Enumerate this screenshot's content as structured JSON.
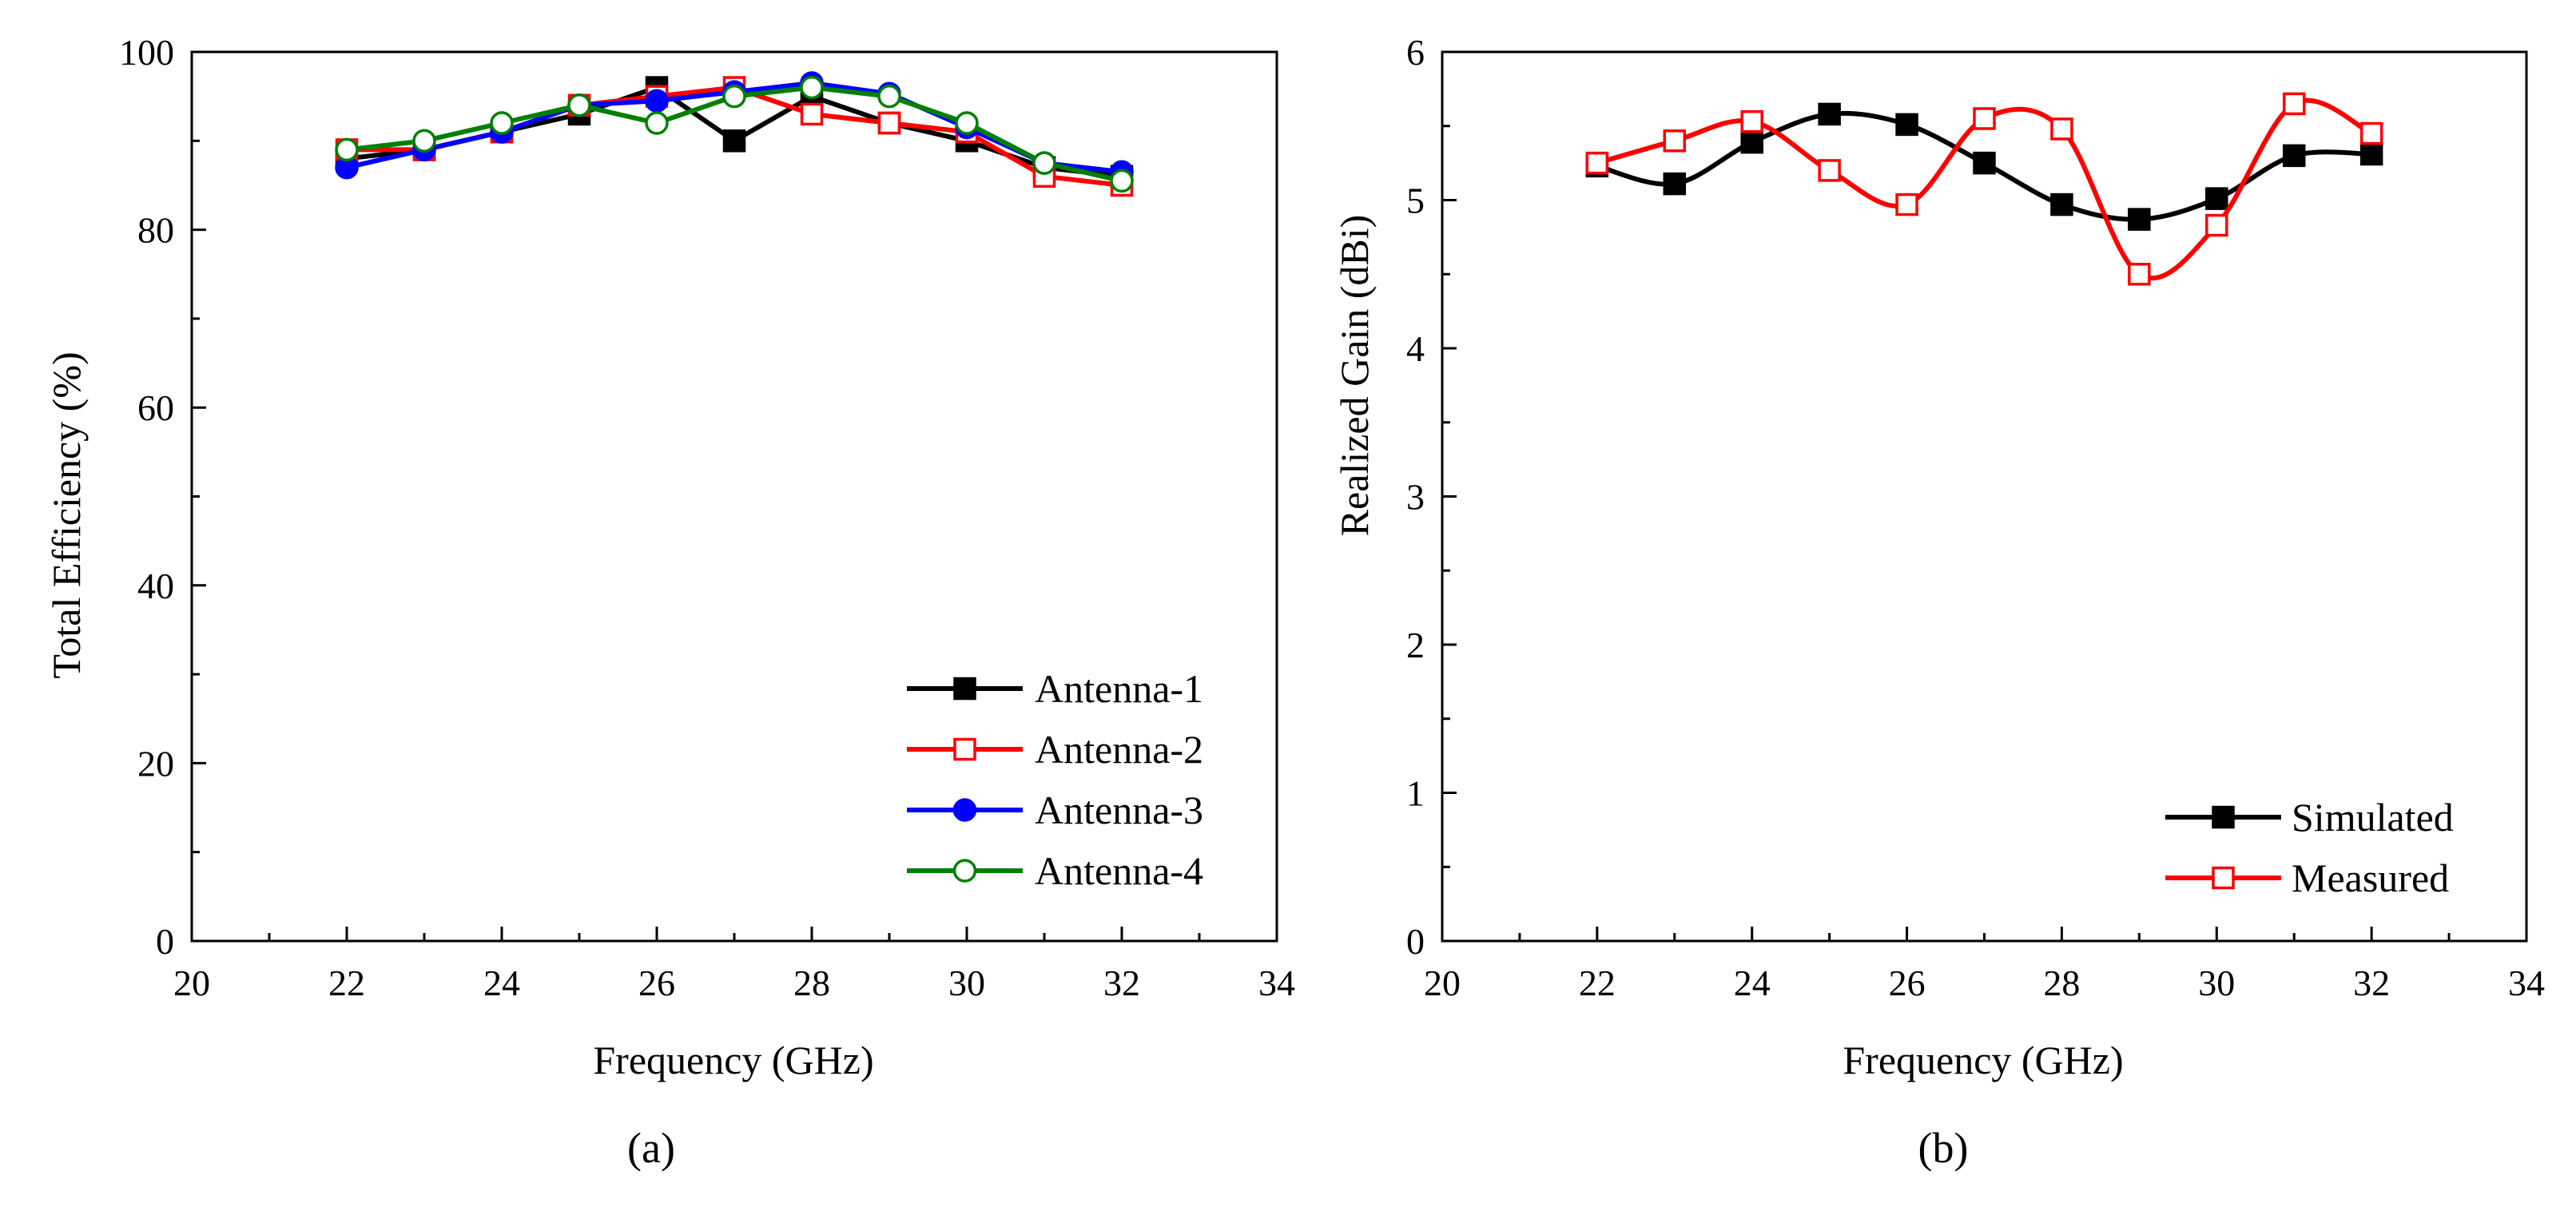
{
  "chart_data": [
    {
      "type": "line",
      "panel_label": "(a)",
      "xlabel": "Frequency (GHz)",
      "ylabel": "Total Efficiency (%)",
      "xlim": [
        20,
        34
      ],
      "ylim": [
        0,
        100
      ],
      "x_ticks": [
        20,
        22,
        24,
        26,
        28,
        30,
        32,
        34
      ],
      "y_ticks": [
        0,
        20,
        40,
        60,
        80,
        100
      ],
      "legend_position": "bottom-right",
      "grid": false,
      "x": [
        22,
        23,
        24,
        25,
        26,
        27,
        28,
        29,
        30,
        31,
        32
      ],
      "series": [
        {
          "name": "Antenna-1",
          "color": "#000000",
          "marker": "square-filled",
          "values": [
            88,
            89,
            91,
            93,
            96,
            90,
            95,
            92,
            90,
            87,
            86
          ]
        },
        {
          "name": "Antenna-2",
          "color": "#ff0000",
          "marker": "square-open",
          "values": [
            89,
            89,
            91,
            94,
            95,
            96,
            93,
            92,
            91,
            86,
            85
          ]
        },
        {
          "name": "Antenna-3",
          "color": "#0000ff",
          "marker": "circle-filled",
          "values": [
            87,
            89,
            91,
            94,
            94.5,
            95.5,
            96.5,
            95.3,
            91.5,
            87.5,
            86.5
          ]
        },
        {
          "name": "Antenna-4",
          "color": "#008000",
          "marker": "circle-open",
          "values": [
            89,
            90,
            92,
            94,
            92,
            95,
            96,
            95,
            92,
            87.5,
            85.5
          ]
        }
      ]
    },
    {
      "type": "line",
      "panel_label": "(b)",
      "xlabel": "Frequency (GHz)",
      "ylabel": "Realized Gain (dBi)",
      "xlim": [
        20,
        34
      ],
      "ylim": [
        0,
        6
      ],
      "x_ticks": [
        20,
        22,
        24,
        26,
        28,
        30,
        32,
        34
      ],
      "y_ticks": [
        0,
        1,
        2,
        3,
        4,
        5,
        6
      ],
      "legend_position": "bottom-right",
      "grid": false,
      "x": [
        22,
        23,
        24,
        25,
        26,
        27,
        28,
        29,
        30,
        31,
        32
      ],
      "series": [
        {
          "name": "Simulated",
          "color": "#000000",
          "marker": "square-filled",
          "smooth": true,
          "values": [
            5.23,
            5.11,
            5.39,
            5.58,
            5.51,
            5.25,
            4.97,
            4.87,
            5.01,
            5.3,
            5.31
          ]
        },
        {
          "name": "Measured",
          "color": "#ff0000",
          "marker": "square-open",
          "smooth": true,
          "values": [
            5.25,
            5.4,
            5.53,
            5.2,
            4.97,
            5.55,
            5.48,
            4.5,
            4.83,
            5.65,
            5.45
          ]
        }
      ]
    }
  ]
}
